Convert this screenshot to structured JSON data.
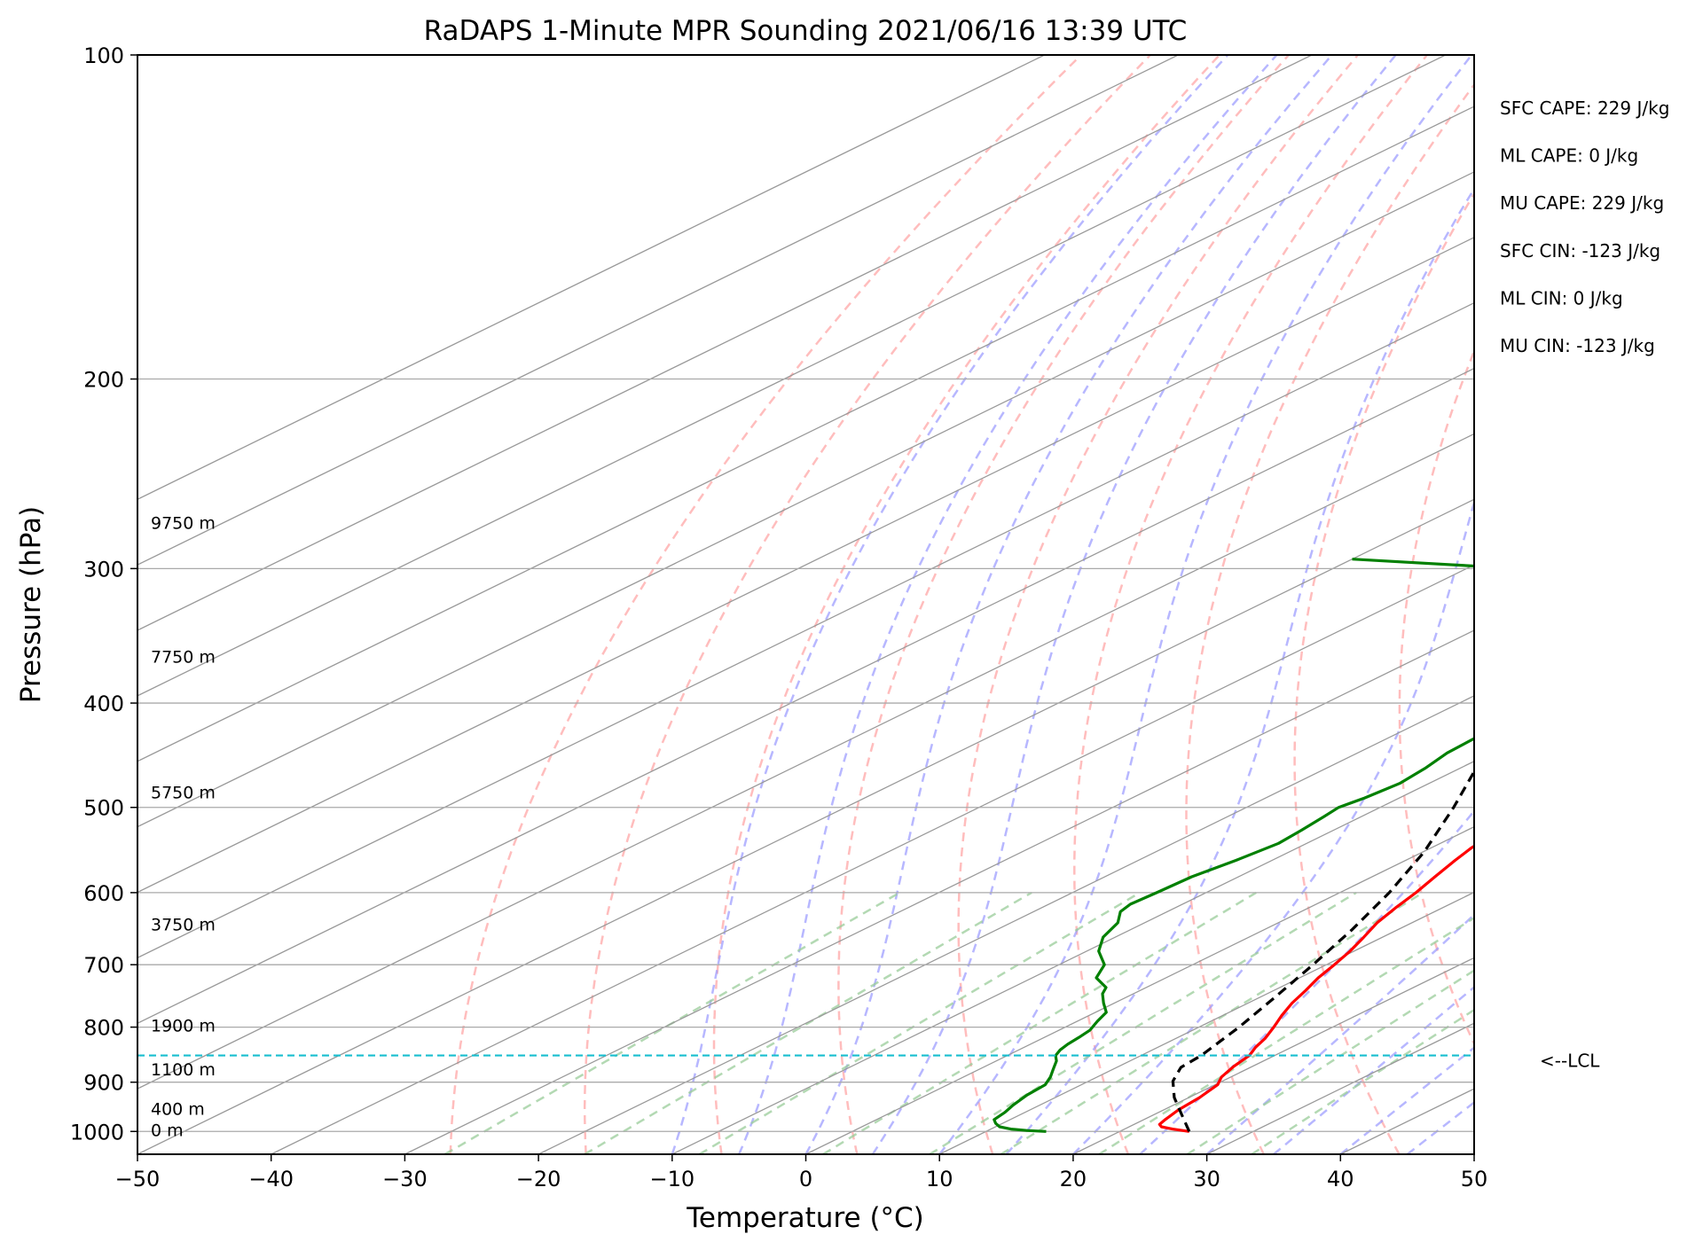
{
  "chart_data": {
    "type": "line",
    "title": "RaDAPS 1-Minute MPR Sounding 2021/06/16 13:39 UTC",
    "xlabel": "Temperature (°C)",
    "ylabel": "Pressure (hPa)",
    "xlim": [
      -50,
      50
    ],
    "ylim": [
      1050,
      100
    ],
    "y_scale": "log",
    "skew": "skew-T",
    "grid": true,
    "x_ticks": [
      -50,
      -40,
      -30,
      -20,
      -10,
      0,
      10,
      20,
      30,
      40,
      50
    ],
    "y_ticks": [
      100,
      200,
      300,
      400,
      500,
      600,
      700,
      800,
      900,
      1000
    ],
    "series": [
      {
        "kind": "temperature",
        "color": "#ff0000",
        "style": "solid",
        "points": [
          [
            1000,
            25.2
          ],
          [
            995,
            23.6
          ],
          [
            990,
            22.4
          ],
          [
            985,
            21.9
          ],
          [
            975,
            21.6
          ],
          [
            955,
            21.1
          ],
          [
            930,
            20.8
          ],
          [
            905,
            20.2
          ],
          [
            890,
            19.3
          ],
          [
            870,
            18.6
          ],
          [
            850,
            18.1
          ],
          [
            835,
            17.3
          ],
          [
            820,
            16.7
          ],
          [
            800,
            15.6
          ],
          [
            780,
            14.4
          ],
          [
            760,
            13.3
          ],
          [
            740,
            12.4
          ],
          [
            720,
            11.4
          ],
          [
            700,
            10.6
          ],
          [
            680,
            9.7
          ],
          [
            660,
            8.6
          ],
          [
            640,
            7.4
          ],
          [
            620,
            6.5
          ],
          [
            600,
            5.7
          ],
          [
            580,
            4.7
          ],
          [
            560,
            3.7
          ],
          [
            545,
            3.0
          ],
          [
            530,
            2.6
          ],
          [
            520,
            2.1
          ],
          [
            500,
            0.8
          ],
          [
            480,
            -0.8
          ],
          [
            465,
            -1.9
          ],
          [
            450,
            -2.6
          ],
          [
            435,
            -3.8
          ],
          [
            420,
            -4.6
          ],
          [
            400,
            -6.1
          ],
          [
            390,
            -7.2
          ],
          [
            380,
            -8.1
          ],
          [
            365,
            -9.3
          ],
          [
            350,
            -10.9
          ],
          [
            335,
            -12.3
          ],
          [
            320,
            -13.4
          ],
          [
            305,
            -14.6
          ],
          [
            290,
            -16.1
          ],
          [
            280,
            -17.3
          ],
          [
            270,
            -18.8
          ],
          [
            260,
            -20.2
          ]
        ]
      },
      {
        "kind": "dewpoint",
        "color": "#008000",
        "style": "solid",
        "points": [
          [
            1000,
            14.5
          ],
          [
            998,
            12.9
          ],
          [
            995,
            11.5
          ],
          [
            990,
            10.3
          ],
          [
            983,
            9.5
          ],
          [
            975,
            8.8
          ],
          [
            960,
            8.5
          ],
          [
            945,
            8.0
          ],
          [
            925,
            7.5
          ],
          [
            905,
            7.3
          ],
          [
            890,
            6.5
          ],
          [
            875,
            5.5
          ],
          [
            860,
            4.5
          ],
          [
            850,
            3.6
          ],
          [
            840,
            3.1
          ],
          [
            830,
            2.8
          ],
          [
            818,
            2.6
          ],
          [
            805,
            2.3
          ],
          [
            790,
            1.5
          ],
          [
            775,
            0.8
          ],
          [
            760,
            -0.8
          ],
          [
            745,
            -2.3
          ],
          [
            735,
            -3.0
          ],
          [
            720,
            -5.2
          ],
          [
            700,
            -6.6
          ],
          [
            680,
            -9.1
          ],
          [
            660,
            -10.9
          ],
          [
            640,
            -12.0
          ],
          [
            625,
            -13.5
          ],
          [
            615,
            -13.9
          ],
          [
            600,
            -13.7
          ],
          [
            580,
            -13.5
          ],
          [
            560,
            -12.7
          ],
          [
            540,
            -12.1
          ],
          [
            525,
            -12.4
          ],
          [
            510,
            -12.8
          ],
          [
            500,
            -13.1
          ],
          [
            490,
            -12.6
          ],
          [
            475,
            -12.2
          ],
          [
            460,
            -12.6
          ],
          [
            445,
            -13.3
          ],
          [
            430,
            -13.5
          ],
          [
            415,
            -14.1
          ],
          [
            405,
            -15.4
          ],
          [
            390,
            -16.2
          ],
          [
            375,
            -17.1
          ],
          [
            360,
            -18.7
          ],
          [
            345,
            -20.1
          ],
          [
            333,
            -21.2
          ],
          [
            325,
            -22.9
          ],
          [
            315,
            -25.0
          ],
          [
            307,
            -28.1
          ],
          [
            300,
            -36.0
          ],
          [
            294,
            -50.0
          ]
        ]
      },
      {
        "kind": "parcel",
        "color": "#000000",
        "style": "dashed",
        "points": [
          [
            1000,
            25.2
          ],
          [
            965,
            22.1
          ],
          [
            930,
            18.9
          ],
          [
            898,
            16.3
          ],
          [
            872,
            14.8
          ],
          [
            850,
            14.5
          ],
          [
            800,
            13.0
          ],
          [
            750,
            11.1
          ],
          [
            700,
            9.0
          ],
          [
            650,
            6.6
          ],
          [
            600,
            3.7
          ],
          [
            550,
            0.1
          ],
          [
            500,
            -4.5
          ],
          [
            450,
            -9.9
          ],
          [
            400,
            -16.4
          ],
          [
            350,
            -24.3
          ],
          [
            300,
            -34.1
          ],
          [
            265,
            -42.3
          ]
        ]
      }
    ],
    "lcl_pressure": 850,
    "lcl_label": "<--LCL",
    "height_labels": [
      {
        "text": "9750 m",
        "pressure": 272
      },
      {
        "text": "7750 m",
        "pressure": 362
      },
      {
        "text": "5750 m",
        "pressure": 484
      },
      {
        "text": "3750 m",
        "pressure": 642
      },
      {
        "text": "1900 m",
        "pressure": 797
      },
      {
        "text": "1100 m",
        "pressure": 875
      },
      {
        "text": "400 m",
        "pressure": 952
      },
      {
        "text": "0 m",
        "pressure": 997
      }
    ],
    "annotations": [
      "SFC CAPE: 229 J/kg",
      "ML CAPE: 0 J/kg",
      "MU CAPE: 229 J/kg",
      "SFC CIN: -123 J/kg",
      "ML CIN: 0 J/kg",
      "MU CIN: -123 J/kg"
    ],
    "colors": {
      "temperature": "#ff0000",
      "dewpoint": "#008000",
      "parcel": "#000000",
      "lcl_line": "#17becf",
      "dry_adiabats": "#ff9999",
      "moist_adiabats": "#9999ff",
      "mixing_ratio": "#99cc99",
      "isotherms": "#999999",
      "isobars": "#aaaaaa"
    }
  }
}
